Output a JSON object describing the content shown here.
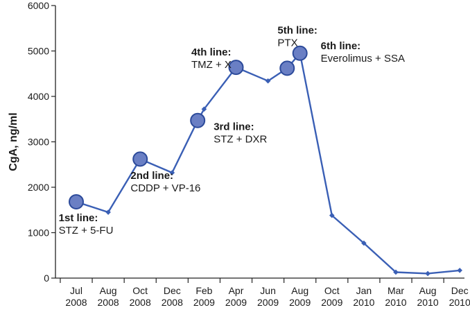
{
  "chart_data": {
    "type": "line",
    "title": "",
    "xlabel": "",
    "ylabel": "CgA, ng/ml",
    "ylim": [
      0,
      6000
    ],
    "yticks": [
      0,
      1000,
      2000,
      3000,
      4000,
      5000,
      6000
    ],
    "categories": [
      [
        "Jul",
        "2008"
      ],
      [
        "Aug",
        "2008"
      ],
      [
        "Oct",
        "2008"
      ],
      [
        "Dec",
        "2008"
      ],
      [
        "Feb",
        "2009"
      ],
      [
        "Apr",
        "2009"
      ],
      [
        "Jun",
        "2009"
      ],
      [
        "Aug",
        "2009"
      ],
      [
        "Oct",
        "2009"
      ],
      [
        "Jan",
        "2010"
      ],
      [
        "Mar",
        "2010"
      ],
      [
        "Aug",
        "2010"
      ],
      [
        "Dec",
        "2010"
      ]
    ],
    "series": [
      {
        "color": "#3a5fb5",
        "points": [
          {
            "x": 0,
            "y": 1680,
            "marker": "circle"
          },
          {
            "x": 1,
            "y": 1450,
            "marker": "diamond"
          },
          {
            "x": 2,
            "y": 2620,
            "marker": "circle"
          },
          {
            "x": 3,
            "y": 2320,
            "marker": "diamond"
          },
          {
            "x": 3.8,
            "y": 3470,
            "marker": "circle"
          },
          {
            "x": 4,
            "y": 3720,
            "marker": "diamond"
          },
          {
            "x": 5,
            "y": 4640,
            "marker": "circle"
          },
          {
            "x": 6,
            "y": 4340,
            "marker": "diamond"
          },
          {
            "x": 6.6,
            "y": 4620,
            "marker": "circle"
          },
          {
            "x": 7,
            "y": 4950,
            "marker": "circle"
          },
          {
            "x": 8,
            "y": 1380,
            "marker": "diamond"
          },
          {
            "x": 9,
            "y": 770,
            "marker": "diamond"
          },
          {
            "x": 10,
            "y": 130,
            "marker": "diamond"
          },
          {
            "x": 11,
            "y": 100,
            "marker": "diamond"
          },
          {
            "x": 12,
            "y": 170,
            "marker": "diamond"
          }
        ]
      }
    ],
    "annotations": [
      {
        "title": "1st line:",
        "text": "STZ + 5-FU",
        "x": -0.55,
        "y": 1250
      },
      {
        "title": "2nd line:",
        "text": "CDDP + VP-16",
        "x": 1.7,
        "y": 2180
      },
      {
        "title": "3rd line:",
        "text": "STZ + DXR",
        "x": 4.3,
        "y": 3260
      },
      {
        "title": "4th line:",
        "text": "TMZ + X",
        "x": 3.6,
        "y": 4900
      },
      {
        "title": "5th line:",
        "text": "PTX",
        "x": 6.3,
        "y": 5380
      },
      {
        "title": "6th line:",
        "text": "Everolimus + SSA",
        "x": 7.65,
        "y": 5040
      }
    ],
    "colors": {
      "line": "#3a5fb5",
      "marker_fill": "#6a7fc4",
      "marker_stroke": "#2c4a9a",
      "axis": "#222222"
    }
  }
}
